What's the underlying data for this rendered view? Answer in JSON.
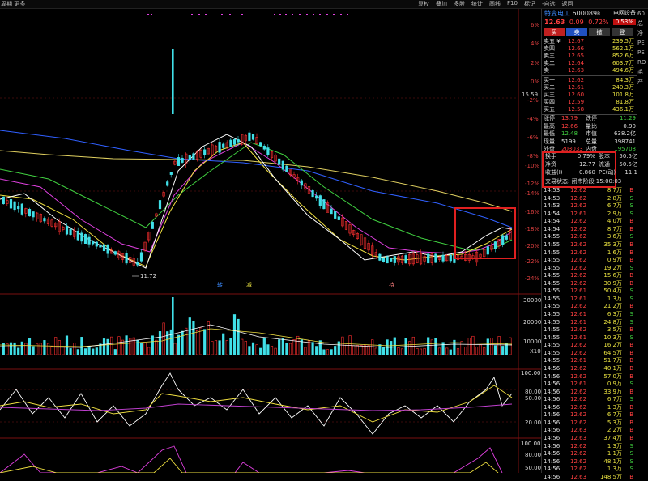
{
  "topbar": {
    "left_label": "周期  更多",
    "menu": [
      "复权",
      "叠加",
      "多股",
      "统计",
      "画线",
      "F10",
      "标记",
      "-自选",
      "返回"
    ]
  },
  "chart": {
    "low_label": "11.72",
    "pct_labels": [
      "6%",
      "4%",
      "2%",
      "0%",
      "-2%",
      "-4%",
      "-6%",
      "-8%",
      "-10%",
      "-12%",
      "-14%",
      "-16%",
      "-18%",
      "-20%",
      "-22%",
      "-24%"
    ],
    "price_marker": "15.59",
    "event_markers": [
      "转",
      "减",
      "持"
    ],
    "volume_labels": [
      "30000",
      "20000",
      "10000",
      "X10"
    ],
    "macd_labels": [
      "100.00",
      "80.00",
      "50.00",
      "20.00"
    ],
    "kdj_labels": [
      "100.00",
      "80.00",
      "50.00"
    ],
    "colors": {
      "up": "#ff3030",
      "down": "#40e0e8",
      "ma5": "#ffffff",
      "ma10": "#f0e040",
      "ma20": "#e040e0",
      "ma60": "#40d040",
      "ma120": "#3060ff",
      "ma250": "#e0d060",
      "highlight": "#e02020"
    }
  },
  "quote": {
    "name": "特变电工",
    "code": "600089",
    "code_suffix": "R",
    "sector": "电网设备",
    "price": "12.63",
    "change": "0.09",
    "change_pct": "0.72%",
    "badge": "0.53%",
    "tabs": [
      "买",
      "卖",
      "撤",
      "登"
    ]
  },
  "asks": [
    {
      "label": "卖五 ¥",
      "price": "12.67",
      "vol": "239.5万"
    },
    {
      "label": "卖四",
      "price": "12.66",
      "vol": "562.1万"
    },
    {
      "label": "卖三",
      "price": "12.65",
      "vol": "852.6万"
    },
    {
      "label": "卖二",
      "price": "12.64",
      "vol": "603.7万"
    },
    {
      "label": "卖一",
      "price": "12.63",
      "vol": "494.6万"
    }
  ],
  "bids": [
    {
      "label": "买一",
      "price": "12.62",
      "vol": "84.3万"
    },
    {
      "label": "买二",
      "price": "12.61",
      "vol": "240.3万"
    },
    {
      "label": "买三",
      "price": "12.60",
      "vol": "101.8万"
    },
    {
      "label": "买四",
      "price": "12.59",
      "vol": "81.8万"
    },
    {
      "label": "买五",
      "price": "12.58",
      "vol": "436.1万"
    }
  ],
  "stats": [
    {
      "a": "涨停",
      "b": "13.79",
      "bc": "#ff4040",
      "c": "跌停",
      "d": "11.29",
      "dc": "#40d040"
    },
    {
      "a": "最高",
      "b": "12.66",
      "bc": "#ff4040",
      "c": "量比",
      "d": "0.90",
      "dc": "#ddd"
    },
    {
      "a": "最低",
      "b": "12.48",
      "bc": "#40d040",
      "c": "市值",
      "d": "638.2亿",
      "dc": "#ddd"
    },
    {
      "a": "现量",
      "b": "5199",
      "bc": "#ddd",
      "c": "总量",
      "d": "398741",
      "dc": "#ddd"
    },
    {
      "a": "外盘",
      "b": "203033",
      "bc": "#ff4040",
      "c": "内盘",
      "d": "195708",
      "dc": "#40d040"
    }
  ],
  "box": [
    {
      "a": "换手",
      "b": "0.79%",
      "c": "股本",
      "d": "50.5亿"
    },
    {
      "a": "净资",
      "b": "12.77",
      "c": "流通",
      "d": "50.5亿"
    },
    {
      "a": "收益(I)",
      "b": "0.860",
      "c": "PE(动)",
      "d": "11.1"
    }
  ],
  "trade_status": "交易状态: 闭市阶段 15:00:03",
  "ticks": [
    {
      "t": "14:53",
      "p": "12.62",
      "v": "8.7万",
      "s": "B"
    },
    {
      "t": "14:53",
      "p": "12.62",
      "v": "2.8万",
      "s": "S"
    },
    {
      "t": "14:53",
      "p": "12.62",
      "v": "6.7万",
      "s": "S"
    },
    {
      "t": "14:54",
      "p": "12.61",
      "v": "2.9万",
      "s": "S"
    },
    {
      "t": "14:54",
      "p": "12.62",
      "v": "4.0万",
      "s": "B"
    },
    {
      "t": "14:54",
      "p": "12.62",
      "v": "8.7万",
      "s": "B"
    },
    {
      "t": "14:55",
      "p": "12.62",
      "v": "3.6万",
      "s": "S"
    },
    {
      "t": "14:55",
      "p": "12.62",
      "v": "35.3万",
      "s": "B"
    },
    {
      "t": "14:55",
      "p": "12.62",
      "v": "1.6万",
      "s": "B"
    },
    {
      "t": "14:55",
      "p": "12.62",
      "v": "0.9万",
      "s": "B"
    },
    {
      "t": "14:55",
      "p": "12.62",
      "v": "19.2万",
      "s": "S"
    },
    {
      "t": "14:55",
      "p": "12.62",
      "v": "15.6万",
      "s": "B"
    },
    {
      "t": "14:55",
      "p": "12.62",
      "v": "30.9万",
      "s": "B"
    },
    {
      "t": "14:55",
      "p": "12.61",
      "v": "50.4万",
      "s": "S"
    },
    {
      "t": "14:55",
      "p": "12.61",
      "v": "1.3万",
      "s": "S"
    },
    {
      "t": "14:55",
      "p": "12.62",
      "v": "21.2万",
      "s": "B"
    },
    {
      "t": "14:55",
      "p": "12.61",
      "v": "6.3万",
      "s": "S"
    },
    {
      "t": "14:55",
      "p": "12.61",
      "v": "24.8万",
      "s": "S"
    },
    {
      "t": "14:55",
      "p": "12.62",
      "v": "3.5万",
      "s": "B"
    },
    {
      "t": "14:55",
      "p": "12.61",
      "v": "10.3万",
      "s": "S"
    },
    {
      "t": "14:55",
      "p": "12.62",
      "v": "16.2万",
      "s": "B"
    },
    {
      "t": "14:55",
      "p": "12.62",
      "v": "64.5万",
      "s": "B"
    },
    {
      "t": "14:55",
      "p": "12.61",
      "v": "51.7万",
      "s": "B"
    },
    {
      "t": "14:56",
      "p": "12.62",
      "v": "40.1万",
      "s": "B"
    },
    {
      "t": "14:56",
      "p": "12.62",
      "v": "57.0万",
      "s": "B"
    },
    {
      "t": "14:56",
      "p": "12.61",
      "v": "0.9万",
      "s": "S"
    },
    {
      "t": "14:56",
      "p": "12.62",
      "v": "33.9万",
      "s": "B"
    },
    {
      "t": "14:56",
      "p": "12.62",
      "v": "6.7万",
      "s": "S"
    },
    {
      "t": "14:56",
      "p": "12.62",
      "v": "1.3万",
      "s": "B"
    },
    {
      "t": "14:56",
      "p": "12.62",
      "v": "6.7万",
      "s": "B"
    },
    {
      "t": "14:56",
      "p": "12.62",
      "v": "5.3万",
      "s": "B"
    },
    {
      "t": "14:56",
      "p": "12.63",
      "v": "2.2万",
      "s": "B"
    },
    {
      "t": "14:56",
      "p": "12.63",
      "v": "37.4万",
      "s": "B"
    },
    {
      "t": "14:56",
      "p": "12.62",
      "v": "1.3万",
      "s": "S"
    },
    {
      "t": "14:56",
      "p": "12.62",
      "v": "1.1万",
      "s": "S"
    },
    {
      "t": "14:56",
      "p": "12.62",
      "v": "48.1万",
      "s": "S"
    },
    {
      "t": "14:56",
      "p": "12.62",
      "v": "1.3万",
      "s": "S"
    },
    {
      "t": "14:56",
      "p": "12.63",
      "v": "148.5万",
      "s": "B"
    }
  ]
}
